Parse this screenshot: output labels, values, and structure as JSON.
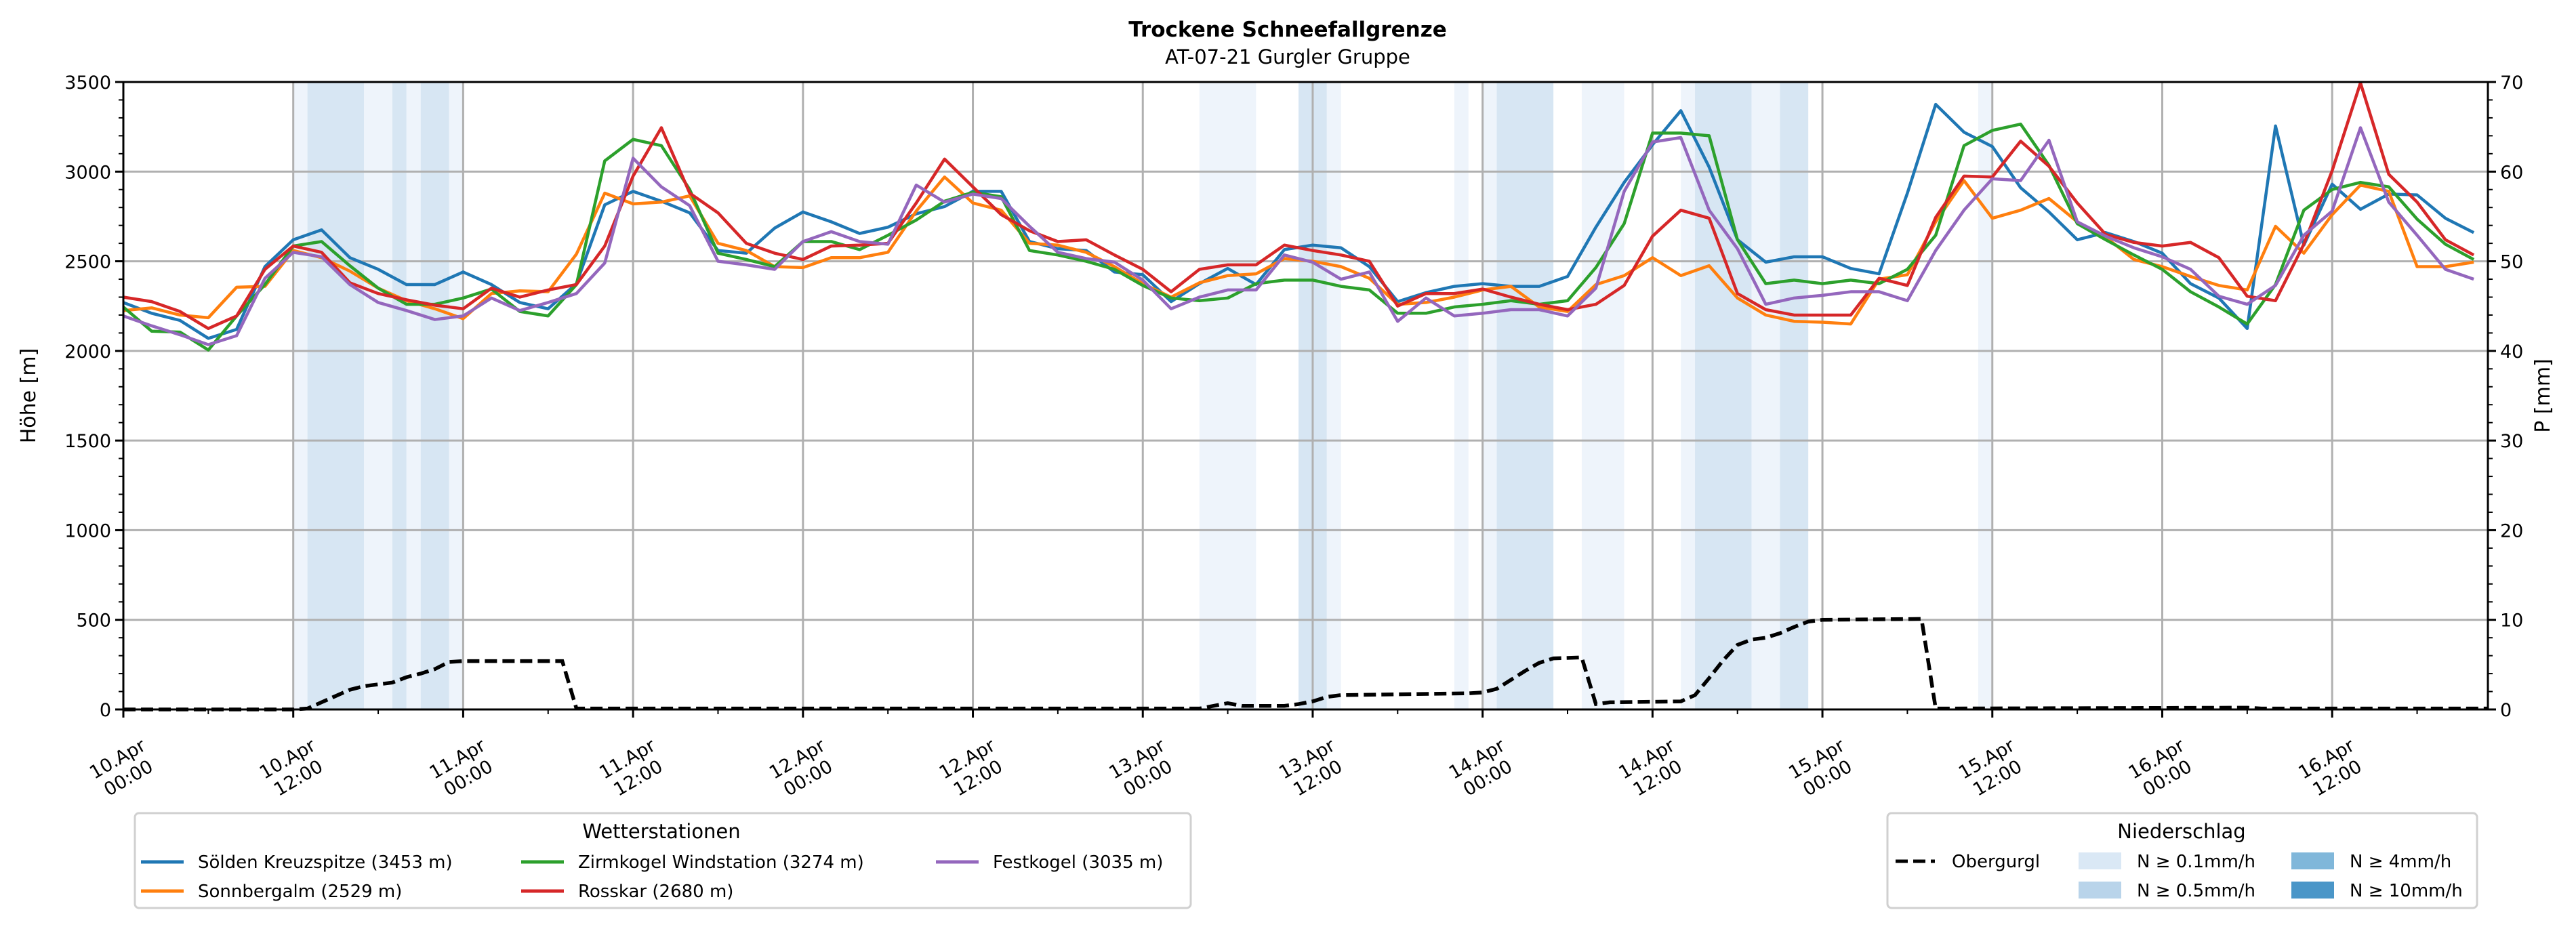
{
  "chart_data": {
    "type": "line",
    "title": "Trockene Schneefallgrenze",
    "subtitle": "AT-07-21 Gurgler Gruppe",
    "ylabel": "Höhe [m]",
    "ylabel_right": "P [mm]",
    "x_unit": "hours since 10.Apr 00:00",
    "xlim": [
      0,
      167
    ],
    "ylim": [
      0,
      3500
    ],
    "ylim_right": [
      0,
      70
    ],
    "grid": true,
    "yticks": [
      0,
      500,
      1000,
      1500,
      2000,
      2500,
      3000,
      3500
    ],
    "yticks_right": [
      0,
      10,
      20,
      30,
      40,
      50,
      60,
      70
    ],
    "xticks": [
      {
        "h": 0,
        "l1": "10.Apr",
        "l2": "00:00"
      },
      {
        "h": 12,
        "l1": "10.Apr",
        "l2": "12:00"
      },
      {
        "h": 24,
        "l1": "11.Apr",
        "l2": "00:00"
      },
      {
        "h": 36,
        "l1": "11.Apr",
        "l2": "12:00"
      },
      {
        "h": 48,
        "l1": "12.Apr",
        "l2": "00:00"
      },
      {
        "h": 60,
        "l1": "12.Apr",
        "l2": "12:00"
      },
      {
        "h": 72,
        "l1": "13.Apr",
        "l2": "00:00"
      },
      {
        "h": 84,
        "l1": "13.Apr",
        "l2": "12:00"
      },
      {
        "h": 96,
        "l1": "14.Apr",
        "l2": "00:00"
      },
      {
        "h": 108,
        "l1": "14.Apr",
        "l2": "12:00"
      },
      {
        "h": 120,
        "l1": "15.Apr",
        "l2": "00:00"
      },
      {
        "h": 132,
        "l1": "15.Apr",
        "l2": "12:00"
      },
      {
        "h": 144,
        "l1": "16.Apr",
        "l2": "00:00"
      },
      {
        "h": 156,
        "l1": "16.Apr",
        "l2": "12:00"
      }
    ],
    "x": [
      0,
      2,
      4,
      6,
      8,
      10,
      12,
      14,
      16,
      18,
      20,
      22,
      24,
      26,
      28,
      30,
      32,
      34,
      36,
      38,
      40,
      42,
      44,
      46,
      48,
      50,
      52,
      54,
      56,
      58,
      60,
      62,
      64,
      66,
      68,
      70,
      72,
      74,
      76,
      78,
      80,
      82,
      84,
      86,
      88,
      90,
      92,
      94,
      96,
      98,
      100,
      102,
      104,
      106,
      108,
      110,
      112,
      114,
      116,
      118,
      120,
      122,
      124,
      126,
      128,
      130,
      132,
      134,
      136,
      138,
      140,
      142,
      144,
      146,
      148,
      150,
      152,
      154,
      156,
      158,
      160,
      162,
      164,
      166
    ],
    "series": [
      {
        "name": "Sölden Kreuzspitze (3453 m)",
        "color": "#1f77b4",
        "values": [
          2270,
          2210,
          2170,
          2070,
          2120,
          2470,
          2620,
          2675,
          2520,
          2455,
          2370,
          2370,
          2440,
          2370,
          2270,
          2235,
          2375,
          2815,
          2890,
          2835,
          2770,
          2560,
          2545,
          2685,
          2775,
          2720,
          2655,
          2690,
          2765,
          2805,
          2890,
          2890,
          2610,
          2570,
          2560,
          2440,
          2425,
          2275,
          2375,
          2460,
          2370,
          2565,
          2590,
          2575,
          2470,
          2275,
          2325,
          2360,
          2375,
          2360,
          2360,
          2415,
          2690,
          2940,
          3150,
          3340,
          3025,
          2620,
          2495,
          2525,
          2525,
          2460,
          2430,
          2880,
          3375,
          3220,
          3140,
          2910,
          2775,
          2620,
          2660,
          2610,
          2545,
          2375,
          2295,
          2125,
          3255,
          2590,
          2930,
          2790,
          2875,
          2870,
          2740,
          2660
        ]
      },
      {
        "name": "Sonnbergalm (2529 m)",
        "color": "#ff7f0e",
        "values": [
          2225,
          2240,
          2200,
          2185,
          2355,
          2360,
          2560,
          2520,
          2445,
          2350,
          2280,
          2235,
          2180,
          2320,
          2335,
          2330,
          2540,
          2880,
          2820,
          2830,
          2865,
          2600,
          2560,
          2470,
          2465,
          2520,
          2520,
          2550,
          2780,
          2970,
          2825,
          2785,
          2600,
          2590,
          2550,
          2470,
          2375,
          2300,
          2380,
          2420,
          2430,
          2515,
          2500,
          2470,
          2405,
          2260,
          2270,
          2300,
          2340,
          2360,
          2245,
          2220,
          2370,
          2420,
          2520,
          2420,
          2475,
          2295,
          2200,
          2165,
          2160,
          2150,
          2400,
          2425,
          2720,
          2950,
          2740,
          2785,
          2850,
          2720,
          2635,
          2510,
          2470,
          2415,
          2365,
          2340,
          2695,
          2545,
          2760,
          2925,
          2890,
          2470,
          2470,
          2495
        ]
      },
      {
        "name": "Zirmkogel Windstation (3274 m)",
        "color": "#2ca02c",
        "values": [
          2245,
          2110,
          2105,
          2005,
          2195,
          2370,
          2585,
          2610,
          2475,
          2350,
          2260,
          2260,
          2295,
          2345,
          2220,
          2195,
          2370,
          3060,
          3180,
          3145,
          2900,
          2545,
          2510,
          2470,
          2610,
          2610,
          2565,
          2645,
          2730,
          2835,
          2885,
          2860,
          2560,
          2535,
          2500,
          2455,
          2365,
          2295,
          2280,
          2295,
          2375,
          2395,
          2395,
          2360,
          2340,
          2210,
          2210,
          2245,
          2260,
          2280,
          2260,
          2280,
          2465,
          2710,
          3215,
          3215,
          3200,
          2620,
          2375,
          2395,
          2375,
          2395,
          2375,
          2455,
          2645,
          3145,
          3230,
          3265,
          3035,
          2710,
          2620,
          2535,
          2455,
          2330,
          2245,
          2150,
          2370,
          2785,
          2900,
          2940,
          2915,
          2735,
          2595,
          2510
        ]
      },
      {
        "name": "Rosskar (2680 m)",
        "color": "#d62728",
        "values": [
          2300,
          2275,
          2220,
          2125,
          2195,
          2455,
          2585,
          2550,
          2380,
          2320,
          2285,
          2255,
          2235,
          2350,
          2300,
          2340,
          2370,
          2585,
          2975,
          3245,
          2880,
          2770,
          2600,
          2545,
          2510,
          2585,
          2590,
          2600,
          2825,
          3070,
          2915,
          2760,
          2670,
          2610,
          2620,
          2535,
          2455,
          2330,
          2455,
          2480,
          2480,
          2590,
          2560,
          2535,
          2500,
          2250,
          2320,
          2320,
          2345,
          2300,
          2260,
          2230,
          2260,
          2365,
          2640,
          2785,
          2740,
          2320,
          2230,
          2200,
          2200,
          2200,
          2405,
          2365,
          2745,
          2975,
          2970,
          3170,
          3030,
          2825,
          2650,
          2605,
          2585,
          2605,
          2520,
          2305,
          2280,
          2595,
          3005,
          3495,
          2985,
          2830,
          2620,
          2535
        ]
      },
      {
        "name": "Festkogel (3035 m)",
        "color": "#9467bd",
        "values": [
          2195,
          2140,
          2090,
          2035,
          2085,
          2405,
          2550,
          2525,
          2370,
          2270,
          2225,
          2175,
          2195,
          2295,
          2225,
          2270,
          2320,
          2490,
          3075,
          2915,
          2810,
          2500,
          2480,
          2455,
          2610,
          2665,
          2610,
          2595,
          2925,
          2830,
          2875,
          2850,
          2695,
          2550,
          2515,
          2495,
          2395,
          2235,
          2300,
          2340,
          2340,
          2535,
          2495,
          2400,
          2440,
          2165,
          2295,
          2195,
          2210,
          2230,
          2230,
          2195,
          2350,
          2890,
          3165,
          3190,
          2785,
          2570,
          2260,
          2295,
          2310,
          2330,
          2330,
          2280,
          2560,
          2785,
          2960,
          2950,
          3175,
          2720,
          2640,
          2575,
          2525,
          2455,
          2305,
          2260,
          2365,
          2645,
          2780,
          3245,
          2830,
          2645,
          2455,
          2400
        ]
      }
    ],
    "precip_line": {
      "name": "Obergurgl",
      "color": "#000000",
      "axis": "right",
      "unit": "mm",
      "points": [
        [
          0,
          0
        ],
        [
          12,
          0
        ],
        [
          13,
          0.1
        ],
        [
          14,
          0.8
        ],
        [
          16,
          2.2
        ],
        [
          17,
          2.6
        ],
        [
          19,
          3.0
        ],
        [
          20,
          3.6
        ],
        [
          21,
          4.0
        ],
        [
          22,
          4.5
        ],
        [
          23,
          5.3
        ],
        [
          24,
          5.4
        ],
        [
          31,
          5.4
        ],
        [
          32,
          0.1
        ],
        [
          76,
          0.1
        ],
        [
          77,
          0.4
        ],
        [
          78,
          0.7
        ],
        [
          79,
          0.4
        ],
        [
          82,
          0.4
        ],
        [
          83,
          0.6
        ],
        [
          84,
          0.9
        ],
        [
          85,
          1.4
        ],
        [
          86,
          1.6
        ],
        [
          95,
          1.8
        ],
        [
          96,
          1.9
        ],
        [
          97,
          2.3
        ],
        [
          98,
          3.3
        ],
        [
          99,
          4.3
        ],
        [
          100,
          5.2
        ],
        [
          101,
          5.7
        ],
        [
          103,
          5.8
        ],
        [
          104,
          0.6
        ],
        [
          105,
          0.8
        ],
        [
          110,
          0.9
        ],
        [
          111,
          1.6
        ],
        [
          112,
          3.5
        ],
        [
          113,
          5.5
        ],
        [
          114,
          7.2
        ],
        [
          115,
          7.8
        ],
        [
          116,
          8.0
        ],
        [
          117,
          8.5
        ],
        [
          118,
          9.2
        ],
        [
          119,
          9.8
        ],
        [
          120,
          10.0
        ],
        [
          127,
          10.1
        ],
        [
          128,
          0.1
        ],
        [
          150,
          0.2
        ],
        [
          151,
          0.1
        ],
        [
          167,
          0.1
        ]
      ]
    },
    "precip_bands": [
      {
        "from": 12,
        "to": 13,
        "class": "0.1"
      },
      {
        "from": 13,
        "to": 17,
        "class": "0.5"
      },
      {
        "from": 17,
        "to": 19,
        "class": "0.1"
      },
      {
        "from": 19,
        "to": 20,
        "class": "0.5"
      },
      {
        "from": 20,
        "to": 21,
        "class": "0.1"
      },
      {
        "from": 21,
        "to": 23,
        "class": "0.5"
      },
      {
        "from": 23,
        "to": 24,
        "class": "0.1"
      },
      {
        "from": 76,
        "to": 80,
        "class": "0.1"
      },
      {
        "from": 83,
        "to": 85,
        "class": "0.5"
      },
      {
        "from": 85,
        "to": 86,
        "class": "0.1"
      },
      {
        "from": 94,
        "to": 95,
        "class": "0.1"
      },
      {
        "from": 96,
        "to": 97,
        "class": "0.1"
      },
      {
        "from": 97,
        "to": 101,
        "class": "0.5"
      },
      {
        "from": 103,
        "to": 106,
        "class": "0.1"
      },
      {
        "from": 110,
        "to": 111,
        "class": "0.1"
      },
      {
        "from": 111,
        "to": 115,
        "class": "0.5"
      },
      {
        "from": 115,
        "to": 117,
        "class": "0.1"
      },
      {
        "from": 117,
        "to": 119,
        "class": "0.5"
      },
      {
        "from": 131,
        "to": 132,
        "class": "0.1"
      }
    ],
    "band_colors": {
      "0.1": "#eef4fb",
      "0.5": "#d7e6f3",
      "4": "#7fb5d9",
      "10": "#4a96c8"
    },
    "legend_stations": {
      "title": "Wetterstationen",
      "placement": "bottom-left"
    },
    "legend_precip": {
      "title": "Niederschlag",
      "placement": "bottom-right",
      "line_label": "Obergurgl",
      "classes": [
        {
          "key": "0.1",
          "label": "N ≥ 0.1mm/h",
          "color": "#dae8f5"
        },
        {
          "key": "0.5",
          "label": "N ≥ 0.5mm/h",
          "color": "#b9d4ea"
        },
        {
          "key": "4",
          "label": "N ≥ 4mm/h",
          "color": "#80b7da"
        },
        {
          "key": "10",
          "label": "N ≥ 10mm/h",
          "color": "#4a96c8"
        }
      ]
    }
  }
}
